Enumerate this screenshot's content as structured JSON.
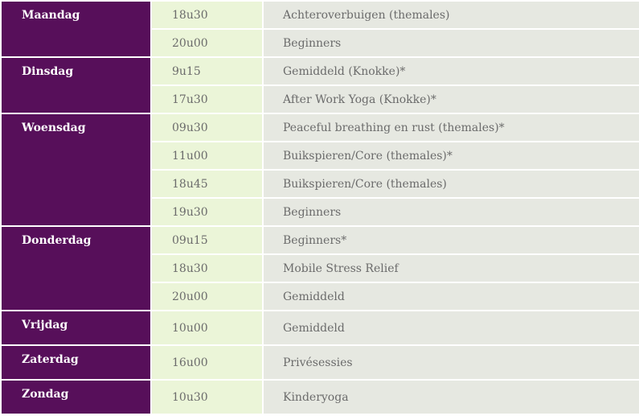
{
  "schedule": {
    "days": [
      {
        "name": "Maandag",
        "sessions": [
          {
            "time": "18u30",
            "class": "Achteroverbuigen (themales)"
          },
          {
            "time": "20u00",
            "class": "Beginners"
          }
        ]
      },
      {
        "name": "Dinsdag",
        "sessions": [
          {
            "time": "9u15",
            "class": "Gemiddeld (Knokke)*"
          },
          {
            "time": "17u30",
            "class": "After Work Yoga (Knokke)*"
          }
        ]
      },
      {
        "name": "Woensdag",
        "sessions": [
          {
            "time": "09u30",
            "class": "Peaceful breathing en rust (themales)*"
          },
          {
            "time": "11u00",
            "class": "Buikspieren/Core (themales)*"
          },
          {
            "time": "18u45",
            "class": "Buikspieren/Core (themales)"
          },
          {
            "time": "19u30",
            "class": "Beginners"
          }
        ]
      },
      {
        "name": "Donderdag",
        "sessions": [
          {
            "time": "09u15",
            "class": "Beginners*"
          },
          {
            "time": "18u30",
            "class": "Mobile Stress Relief"
          },
          {
            "time": "20u00",
            "class": "Gemiddeld"
          }
        ]
      },
      {
        "name": "Vrijdag",
        "sessions": [
          {
            "time": "10u00",
            "class": "Gemiddeld"
          }
        ]
      },
      {
        "name": "Zaterdag",
        "sessions": [
          {
            "time": "16u00",
            "class": "Privésessies"
          }
        ]
      },
      {
        "name": "Zondag",
        "sessions": [
          {
            "time": "10u30",
            "class": "Kinderyoga"
          }
        ]
      }
    ]
  }
}
